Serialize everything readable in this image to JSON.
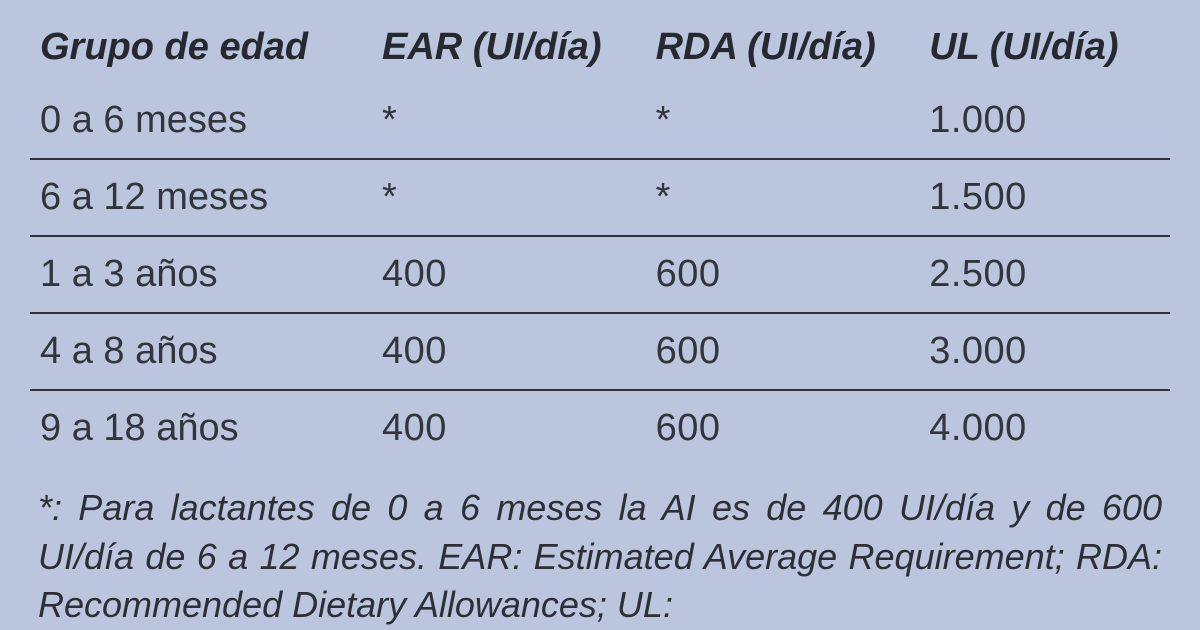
{
  "table": {
    "background_color": "#bbc5dd",
    "header_fontsize": 38,
    "header_font_style": "italic",
    "header_font_weight": "700",
    "cell_fontsize": 38,
    "row_border_color": "#2f343a",
    "row_border_width": 2,
    "text_color": "#2b2f35",
    "columns": [
      {
        "key": "grupo",
        "label": "Grupo de edad",
        "width_pct": 30,
        "align": "left"
      },
      {
        "key": "ear",
        "label": "EAR (UI/día)",
        "width_pct": 24,
        "align": "left"
      },
      {
        "key": "rda",
        "label": "RDA (UI/día)",
        "width_pct": 24,
        "align": "left"
      },
      {
        "key": "ul",
        "label": "UL (UI/día)",
        "width_pct": 22,
        "align": "left"
      }
    ],
    "rows": [
      {
        "grupo": "0 a 6 meses",
        "ear": "*",
        "rda": "*",
        "ul": "1.000"
      },
      {
        "grupo": "6 a 12 meses",
        "ear": "*",
        "rda": "*",
        "ul": "1.500"
      },
      {
        "grupo": "1 a 3 años",
        "ear": "400",
        "rda": "600",
        "ul": "2.500"
      },
      {
        "grupo": "4 a 8 años",
        "ear": "400",
        "rda": "600",
        "ul": "3.000"
      },
      {
        "grupo": "9 a 18 años",
        "ear": "400",
        "rda": "600",
        "ul": "4.000"
      }
    ]
  },
  "footnote": {
    "text": "*: Para lactantes de 0 a 6 meses la AI es de 400 UI/día y de 600 UI/día de 6 a 12 meses. EAR: Estimated Average Requirement; RDA: Recommended Dietary Allowances; UL:",
    "fontsize": 36,
    "font_style": "italic",
    "text_align": "justify"
  }
}
